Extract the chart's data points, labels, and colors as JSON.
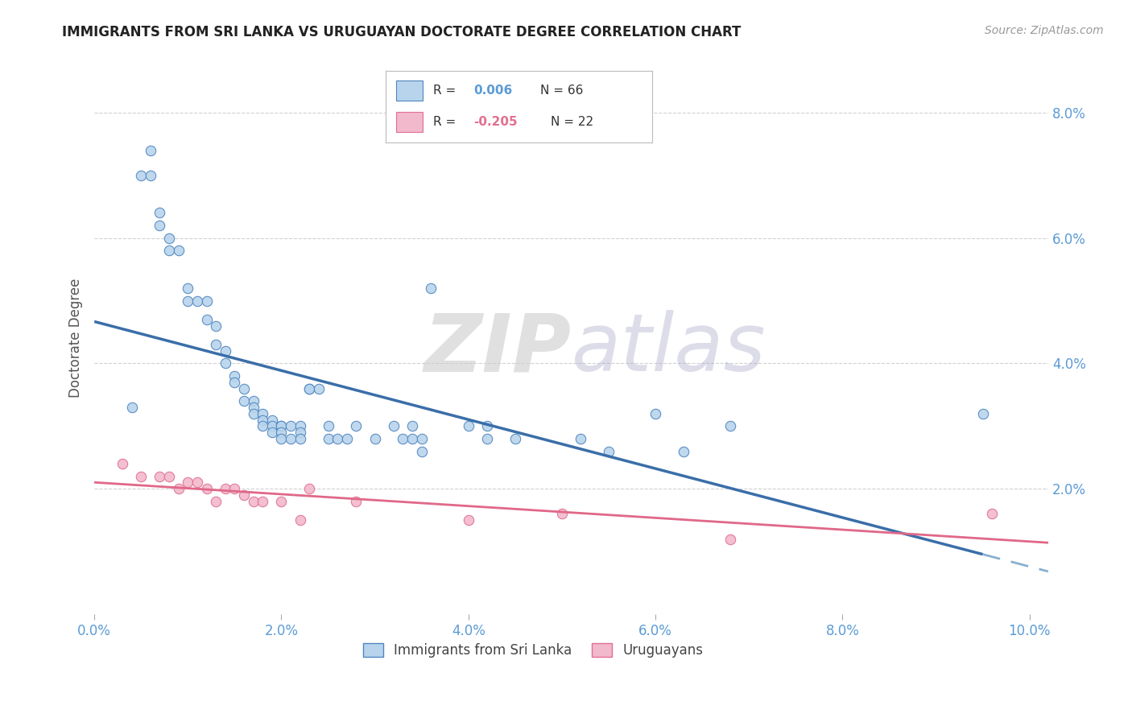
{
  "title": "IMMIGRANTS FROM SRI LANKA VS URUGUAYAN DOCTORATE DEGREE CORRELATION CHART",
  "source_text": "Source: ZipAtlas.com",
  "ylabel": "Doctorate Degree",
  "xlim": [
    0.0,
    0.102
  ],
  "ylim": [
    0.0,
    0.088
  ],
  "xtick_values": [
    0.0,
    0.02,
    0.04,
    0.06,
    0.08,
    0.1
  ],
  "ytick_values": [
    0.0,
    0.02,
    0.04,
    0.06,
    0.08
  ],
  "legend_blue_r": "R =  0.006",
  "legend_blue_n": "N = 66",
  "legend_pink_r": "R = -0.205",
  "legend_pink_n": "N = 22",
  "blue_fill": "#B8D4EC",
  "blue_edge": "#4F86C0",
  "pink_fill": "#F2B8CC",
  "pink_edge": "#E07090",
  "blue_line_solid": "#3A6EA8",
  "blue_line_dash": "#8AB0D0",
  "pink_line": "#E06888",
  "grid_color": "#CCCCCC",
  "bg_color": "#FFFFFF",
  "watermark_zip": "ZIP",
  "watermark_atlas": "atlas",
  "blue_x": [
    0.004,
    0.005,
    0.006,
    0.006,
    0.007,
    0.007,
    0.008,
    0.008,
    0.009,
    0.01,
    0.01,
    0.011,
    0.012,
    0.012,
    0.013,
    0.013,
    0.014,
    0.014,
    0.015,
    0.015,
    0.016,
    0.016,
    0.017,
    0.017,
    0.017,
    0.018,
    0.018,
    0.018,
    0.019,
    0.019,
    0.019,
    0.02,
    0.02,
    0.02,
    0.02,
    0.021,
    0.021,
    0.022,
    0.022,
    0.022,
    0.023,
    0.023,
    0.024,
    0.025,
    0.025,
    0.026,
    0.027,
    0.028,
    0.03,
    0.032,
    0.033,
    0.034,
    0.034,
    0.035,
    0.035,
    0.036,
    0.04,
    0.042,
    0.042,
    0.045,
    0.052,
    0.055,
    0.06,
    0.063,
    0.068,
    0.095
  ],
  "blue_y": [
    0.033,
    0.07,
    0.074,
    0.07,
    0.064,
    0.062,
    0.06,
    0.058,
    0.058,
    0.052,
    0.05,
    0.05,
    0.05,
    0.047,
    0.046,
    0.043,
    0.042,
    0.04,
    0.038,
    0.037,
    0.036,
    0.034,
    0.034,
    0.033,
    0.032,
    0.032,
    0.031,
    0.03,
    0.031,
    0.03,
    0.029,
    0.03,
    0.03,
    0.029,
    0.028,
    0.03,
    0.028,
    0.03,
    0.029,
    0.028,
    0.036,
    0.036,
    0.036,
    0.03,
    0.028,
    0.028,
    0.028,
    0.03,
    0.028,
    0.03,
    0.028,
    0.03,
    0.028,
    0.028,
    0.026,
    0.052,
    0.03,
    0.03,
    0.028,
    0.028,
    0.028,
    0.026,
    0.032,
    0.026,
    0.03,
    0.032
  ],
  "pink_x": [
    0.003,
    0.005,
    0.007,
    0.008,
    0.009,
    0.01,
    0.011,
    0.012,
    0.013,
    0.014,
    0.015,
    0.016,
    0.017,
    0.018,
    0.02,
    0.022,
    0.023,
    0.028,
    0.04,
    0.05,
    0.068,
    0.096
  ],
  "pink_y": [
    0.024,
    0.022,
    0.022,
    0.022,
    0.02,
    0.021,
    0.021,
    0.02,
    0.018,
    0.02,
    0.02,
    0.019,
    0.018,
    0.018,
    0.018,
    0.015,
    0.02,
    0.018,
    0.015,
    0.016,
    0.012,
    0.016
  ],
  "marker_size": 80
}
